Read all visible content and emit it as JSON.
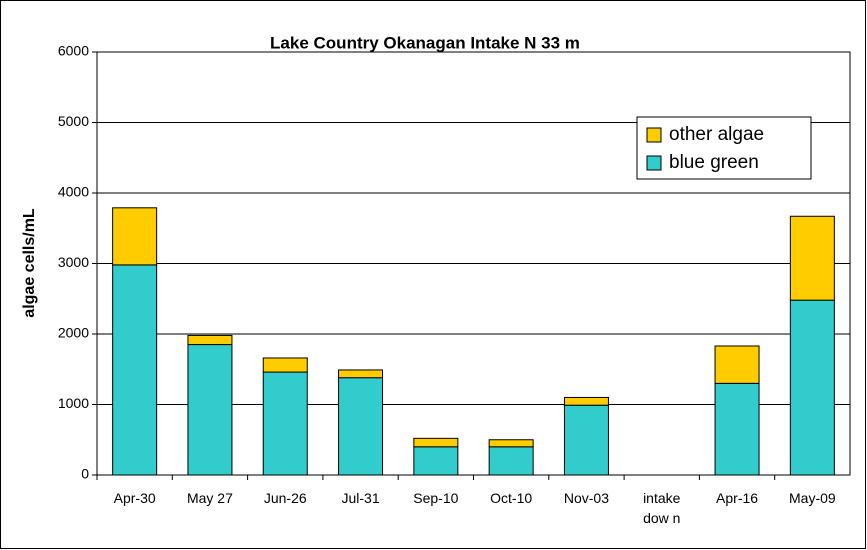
{
  "chart_data": {
    "type": "stacked_bar",
    "title": "Lake Country Okanagan Intake N 33 m",
    "y_label": "algae cells/mL",
    "categories": [
      "Apr-30",
      "May 27",
      "Jun-26",
      "Jul-31",
      "Sep-10",
      "Oct-10",
      "Nov-03",
      "intake dow n",
      "Apr-16",
      "May-09"
    ],
    "series": [
      {
        "name": "blue green",
        "color": "#33cccc",
        "values": [
          2980,
          1850,
          1460,
          1380,
          400,
          400,
          990,
          null,
          1300,
          2480
        ]
      },
      {
        "name": "other algae",
        "color": "#ffcc00",
        "values": [
          810,
          130,
          200,
          110,
          120,
          100,
          110,
          null,
          530,
          1190
        ]
      }
    ],
    "ylim": [
      0,
      6000
    ],
    "yticks": [
      0,
      1000,
      2000,
      3000,
      4000,
      5000,
      6000
    ],
    "grid": true,
    "legend": "upper right"
  }
}
